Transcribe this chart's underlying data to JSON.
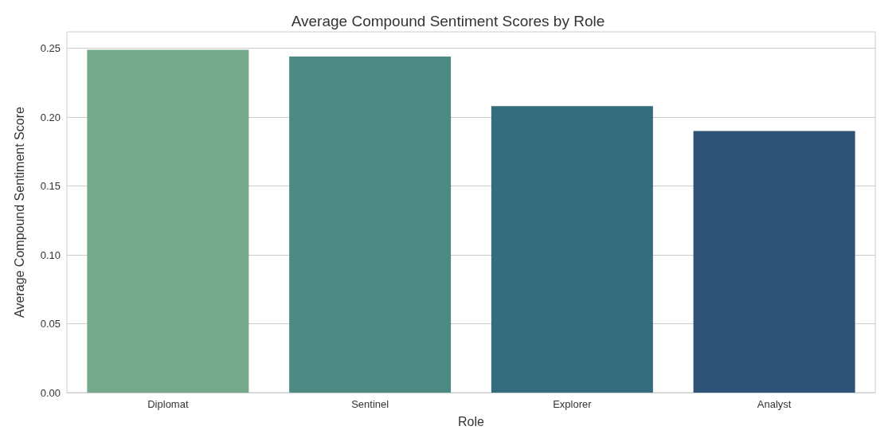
{
  "chart_data": {
    "type": "bar",
    "title": "Average Compound Sentiment Scores by Role",
    "xlabel": "Role",
    "ylabel": "Average Compound Sentiment Score",
    "categories": [
      "Diplomat",
      "Sentinel",
      "Explorer",
      "Analyst"
    ],
    "values": [
      0.249,
      0.244,
      0.208,
      0.19
    ],
    "colors": [
      "#76a88c",
      "#4e8a84",
      "#346e7e",
      "#2e5377"
    ],
    "ylim": [
      0,
      0.262
    ],
    "yticks": [
      {
        "value": 0,
        "label": "0.00"
      },
      {
        "value": 0.05,
        "label": "0.05"
      },
      {
        "value": 0.1,
        "label": "0.10"
      },
      {
        "value": 0.15,
        "label": "0.15"
      },
      {
        "value": 0.2,
        "label": "0.20"
      },
      {
        "value": 0.25,
        "label": "0.25"
      }
    ],
    "grid": "y"
  }
}
